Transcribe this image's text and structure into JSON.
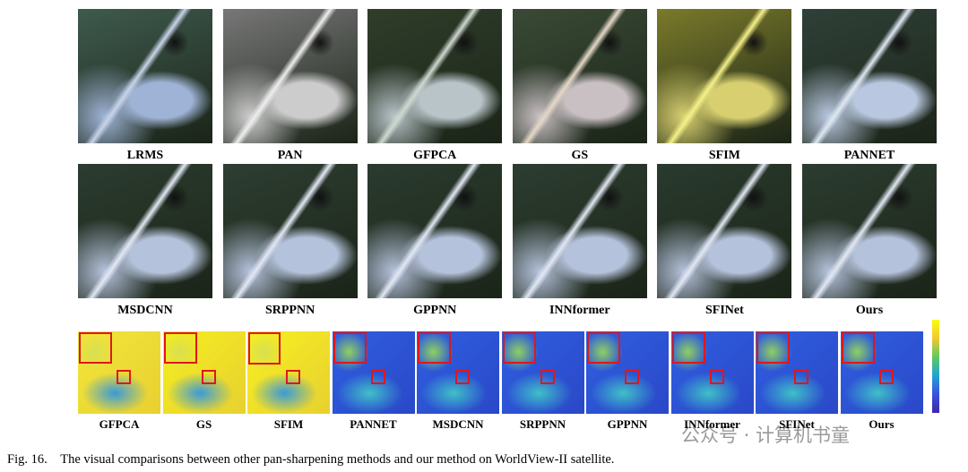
{
  "figure": {
    "row1": [
      "LRMS",
      "PAN",
      "GFPCA",
      "GS",
      "SFIM",
      "PANNET"
    ],
    "row2": [
      "MSDCNN",
      "SRPPNN",
      "GPPNN",
      "INNformer",
      "SFINet",
      "Ours"
    ],
    "row3": [
      "GFPCA",
      "GS",
      "SFIM",
      "PANNET",
      "MSDCNN",
      "SRPPNN",
      "GPPNN",
      "INNformer",
      "SFINet",
      "Ours"
    ],
    "caption_label": "Fig. 16.",
    "caption": "The visual comparisons between other pan-sharpening methods and our method on WorldView-II satellite."
  },
  "watermark": "公众号 · 计算机书童"
}
